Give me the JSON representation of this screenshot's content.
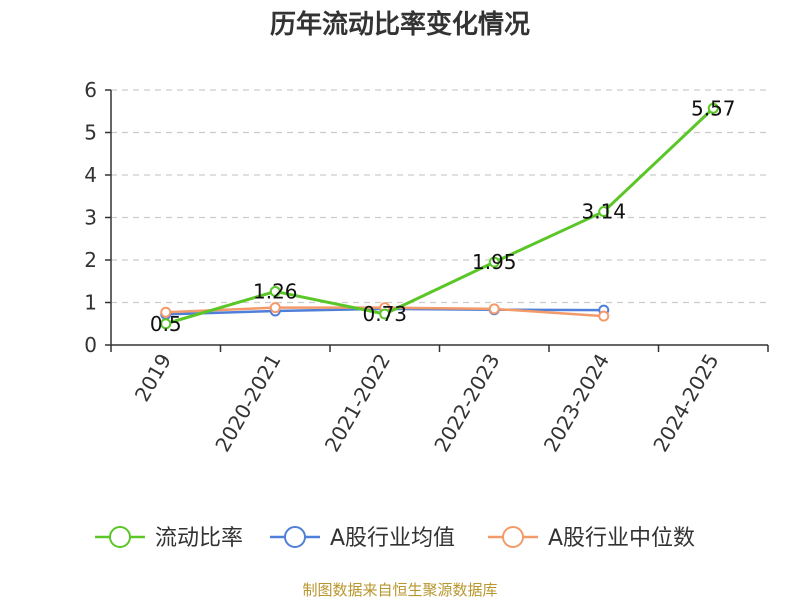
{
  "chart_data": {
    "type": "line",
    "title": "历年流动比率变化情况",
    "categories": [
      "2019",
      "2020-2021",
      "2021-2022",
      "2022-2023",
      "2023-2024",
      "2024-2025"
    ],
    "ylim": [
      0,
      6
    ],
    "yticks": [
      "0",
      "1",
      "2",
      "3",
      "4",
      "5",
      "6"
    ],
    "grid": true,
    "legend_position": "bottom",
    "series": [
      {
        "name": "流动比率",
        "color": "#5bc628",
        "values": [
          0.5,
          1.26,
          0.73,
          1.95,
          3.14,
          5.57
        ],
        "labels": [
          "0.5",
          "1.26",
          "0.73",
          "1.95",
          "3.14",
          "5.57"
        ]
      },
      {
        "name": "A股行业均值",
        "color": "#4f7fd9",
        "values": [
          0.72,
          0.8,
          0.85,
          0.83,
          0.82,
          null
        ]
      },
      {
        "name": "A股行业中位数",
        "color": "#f39a6b",
        "values": [
          0.77,
          0.88,
          0.88,
          0.85,
          0.68,
          null
        ]
      }
    ]
  },
  "source": "制图数据来自恒生聚源数据库"
}
